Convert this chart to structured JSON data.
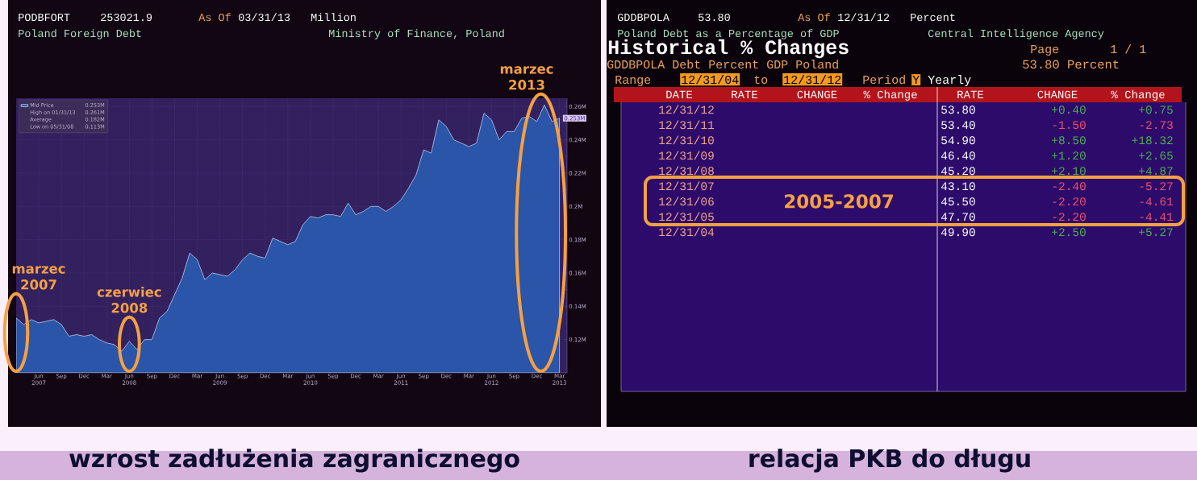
{
  "chart_data": [
    {
      "type": "area",
      "title": "Poland Foreign Debt",
      "subtitle": "Ministry of Finance, Poland",
      "x": [
        "2007-03",
        "2007-04",
        "2007-05",
        "2007-06",
        "2007-07",
        "2007-08",
        "2007-09",
        "2007-10",
        "2007-11",
        "2007-12",
        "2008-01",
        "2008-02",
        "2008-03",
        "2008-04",
        "2008-05",
        "2008-06",
        "2008-07",
        "2008-08",
        "2008-09",
        "2008-10",
        "2008-11",
        "2008-12",
        "2009-01",
        "2009-02",
        "2009-03",
        "2009-04",
        "2009-05",
        "2009-06",
        "2009-07",
        "2009-08",
        "2009-09",
        "2009-10",
        "2009-11",
        "2009-12",
        "2010-01",
        "2010-02",
        "2010-03",
        "2010-04",
        "2010-05",
        "2010-06",
        "2010-07",
        "2010-08",
        "2010-09",
        "2010-10",
        "2010-11",
        "2010-12",
        "2011-01",
        "2011-02",
        "2011-03",
        "2011-04",
        "2011-05",
        "2011-06",
        "2011-07",
        "2011-08",
        "2011-09",
        "2011-10",
        "2011-11",
        "2011-12",
        "2012-01",
        "2012-02",
        "2012-03",
        "2012-04",
        "2012-05",
        "2012-06",
        "2012-07",
        "2012-08",
        "2012-09",
        "2012-10",
        "2012-11",
        "2012-12",
        "2013-01",
        "2013-02",
        "2013-03"
      ],
      "series": [
        {
          "name": "Mid Price",
          "color": "#2a55a8",
          "values": [
            0.133,
            0.129,
            0.132,
            0.13,
            0.131,
            0.132,
            0.129,
            0.122,
            0.123,
            0.122,
            0.123,
            0.12,
            0.118,
            0.117,
            0.113,
            0.119,
            0.114,
            0.12,
            0.12,
            0.133,
            0.137,
            0.147,
            0.157,
            0.172,
            0.168,
            0.156,
            0.16,
            0.159,
            0.158,
            0.162,
            0.168,
            0.172,
            0.17,
            0.169,
            0.181,
            0.179,
            0.177,
            0.179,
            0.189,
            0.194,
            0.193,
            0.195,
            0.195,
            0.194,
            0.202,
            0.195,
            0.197,
            0.2,
            0.2,
            0.197,
            0.2,
            0.204,
            0.211,
            0.219,
            0.234,
            0.232,
            0.252,
            0.248,
            0.24,
            0.238,
            0.236,
            0.238,
            0.256,
            0.252,
            0.24,
            0.245,
            0.245,
            0.253,
            0.254,
            0.251,
            0.261,
            0.251,
            0.253
          ],
          "value_labels": [
            null,
            null,
            null,
            null,
            null,
            null,
            null,
            null,
            null,
            null,
            null,
            null,
            null,
            null,
            null,
            null,
            null,
            null,
            null,
            null,
            null,
            null,
            null,
            null,
            null,
            null,
            null,
            null,
            null,
            null,
            null,
            null,
            null,
            null,
            null,
            null,
            null,
            null,
            null,
            null,
            null,
            null,
            null,
            null,
            null,
            null,
            null,
            null,
            null,
            null,
            null,
            null,
            null,
            null,
            null,
            null,
            null,
            null,
            null,
            null,
            null,
            null,
            null,
            null,
            null,
            null,
            null,
            null,
            null,
            null,
            null,
            null,
            "0.253M"
          ]
        }
      ],
      "xlim": [
        "2007-03",
        "2013-04"
      ],
      "ylim": [
        0.1,
        0.265
      ],
      "xticks": [
        {
          "value": "2007-06",
          "label": "Jun 2007"
        },
        {
          "value": "2007-09",
          "label": "Sep"
        },
        {
          "value": "2007-12",
          "label": "Dec"
        },
        {
          "value": "2008-03",
          "label": "Mar"
        },
        {
          "value": "2008-06",
          "label": "Jun 2008"
        },
        {
          "value": "2008-09",
          "label": "Sep"
        },
        {
          "value": "2008-12",
          "label": "Dec"
        },
        {
          "value": "2009-03",
          "label": "Mar"
        },
        {
          "value": "2009-06",
          "label": "Jun 2009"
        },
        {
          "value": "2009-09",
          "label": "Sep"
        },
        {
          "value": "2009-12",
          "label": "Dec"
        },
        {
          "value": "2010-03",
          "label": "Mar"
        },
        {
          "value": "2010-06",
          "label": "Jun 2010"
        },
        {
          "value": "2010-09",
          "label": "Sep"
        },
        {
          "value": "2010-12",
          "label": "Dec"
        },
        {
          "value": "2011-03",
          "label": "Mar"
        },
        {
          "value": "2011-06",
          "label": "Jun 2011"
        },
        {
          "value": "2011-09",
          "label": "Sep"
        },
        {
          "value": "2011-12",
          "label": "Dec"
        },
        {
          "value": "2012-03",
          "label": "Mar"
        },
        {
          "value": "2012-06",
          "label": "Jun 2012"
        },
        {
          "value": "2012-09",
          "label": "Sep"
        },
        {
          "value": "2012-12",
          "label": "Dec"
        },
        {
          "value": "2013-03",
          "label": "Mar 2013"
        }
      ],
      "yticks": [
        {
          "value": 0.12,
          "label": "0.12M"
        },
        {
          "value": 0.14,
          "label": "0.14M"
        },
        {
          "value": 0.16,
          "label": "0.16M"
        },
        {
          "value": 0.18,
          "label": "0.18M"
        },
        {
          "value": 0.2,
          "label": "0.2M"
        },
        {
          "value": 0.22,
          "label": "0.22M"
        },
        {
          "value": 0.24,
          "label": "0.24M"
        },
        {
          "value": 0.26,
          "label": "0.26M"
        }
      ],
      "grid": true,
      "legend": "top left",
      "annotations": [
        "PODBFORT",
        "253021.9",
        "As Of",
        "03/31/13",
        "Million",
        "0.253M",
        "High on 01/31/13",
        "0.261M",
        "Average",
        "0.182M",
        "Low on 05/31/08",
        "0.113M",
        {
          "text": "marzec 2007",
          "x": "2007-03",
          "y": 0.133
        },
        {
          "text": "czerwiec 2008",
          "x": "2008-06",
          "y": 0.119
        },
        {
          "text": "marzec 2013",
          "x": "2013-03",
          "y": 0.253
        },
        "wzrost zadłużenia zagranicznego"
      ]
    },
    {
      "type": "other",
      "title": "Historical % Changes",
      "subtitle": "Poland Debt as a Percentage of GDP",
      "categories": [
        "12/31/12",
        "12/31/11",
        "12/31/10",
        "12/31/09",
        "12/31/08",
        "12/31/07",
        "12/31/06",
        "12/31/05",
        "12/31/04"
      ],
      "series": [
        {
          "name": "RATE",
          "values": [
            53.8,
            53.4,
            54.9,
            46.4,
            45.2,
            43.1,
            45.5,
            47.7,
            49.9
          ],
          "value_labels": [
            "53.80",
            "53.40",
            "54.90",
            "46.40",
            "45.20",
            "43.10",
            "45.50",
            "47.70",
            "49.90"
          ]
        },
        {
          "name": "CHANGE",
          "colors": [
            "#4caf50",
            "#f0506a",
            "#4caf50",
            "#4caf50",
            "#4caf50",
            "#f0506a",
            "#f0506a",
            "#f0506a",
            "#4caf50"
          ],
          "values": [
            0.4,
            -1.5,
            8.5,
            1.2,
            2.1,
            -2.4,
            -2.2,
            -2.2,
            2.5
          ],
          "value_labels": [
            "+0.40",
            "-1.50",
            "+8.50",
            "+1.20",
            "+2.10",
            "-2.40",
            "-2.20",
            "-2.20",
            "+2.50"
          ]
        },
        {
          "name": "% Change",
          "colors": [
            "#4caf50",
            "#f0506a",
            "#4caf50",
            "#4caf50",
            "#4caf50",
            "#f0506a",
            "#f0506a",
            "#f0506a",
            "#4caf50"
          ],
          "values": [
            0.75,
            -2.73,
            18.32,
            2.65,
            4.87,
            -5.27,
            -4.61,
            -4.41,
            5.27
          ],
          "value_labels": [
            "+0.75",
            "-2.73",
            "+18.32",
            "+2.65",
            "+4.87",
            "-5.27",
            "-4.61",
            "-4.41",
            "+5.27"
          ]
        }
      ],
      "annotations": [
        "GDDBPOLA",
        "53.80",
        "As Of",
        "12/31/12",
        "Percent",
        "Central Intelligence Agency",
        "Page",
        "1 / 1",
        "GDDBPOLA Debt Percent GDP Poland",
        "53.80 Percent",
        "Range",
        "12/31/04",
        "to",
        "12/31/12",
        "Period",
        "Y",
        "Yearly",
        "DATE",
        "RATE",
        "CHANGE",
        "% Change",
        "2005-2007",
        "relacja PKB do długu"
      ]
    }
  ]
}
